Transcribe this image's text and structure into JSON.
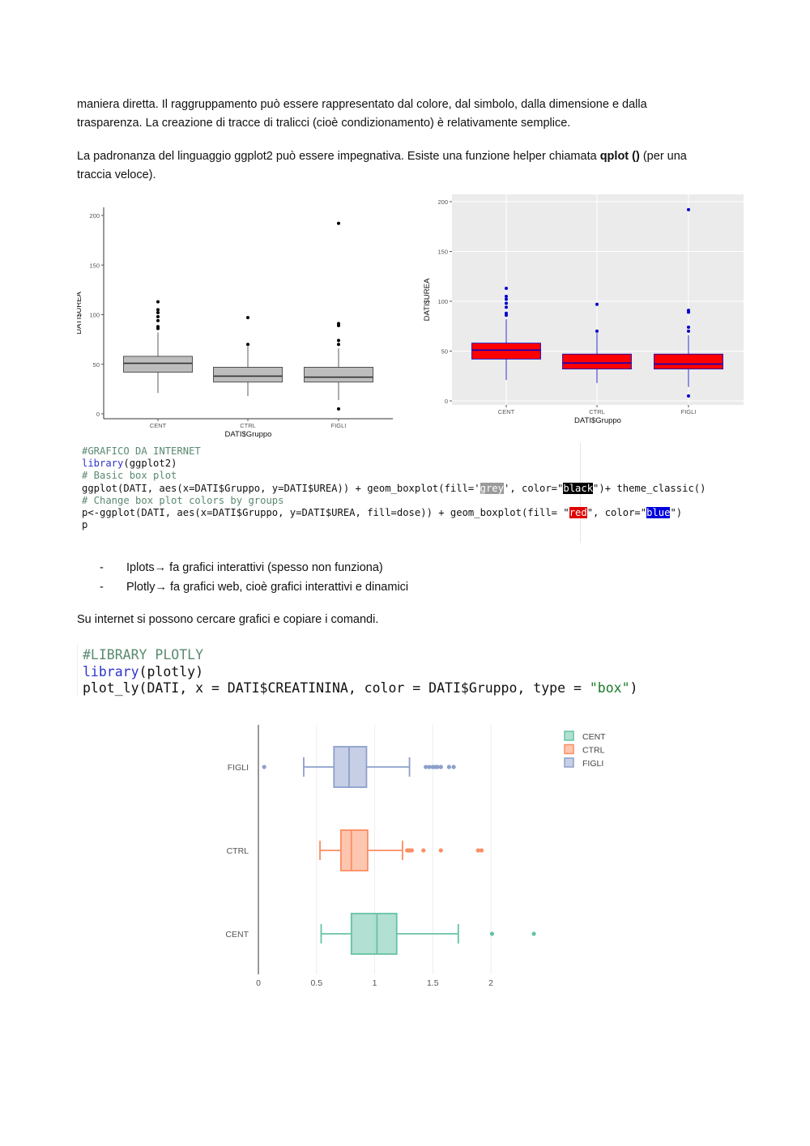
{
  "paragraphs": {
    "p1_line1": "maniera diretta. Il raggruppamento può essere rappresentato dal colore, dal simbolo, dalla dimensione e dalla",
    "p1_line2": "trasparenza. La creazione di tracce di tralicci (cioè condizionamento) è relativamente semplice.",
    "p2_pre": "La padronanza del linguaggio ggplot2 può essere impegnativa. Esiste una funzione helper chiamata ",
    "p2_bold": "qplot ()",
    "p2_post": " (per una",
    "p2_line2": "traccia veloce).",
    "p3": "Su internet si possono cercare grafici e copiare i comandi."
  },
  "bullets": [
    {
      "dash": "-",
      "text": "Iplots→ fa grafici interattivi (spesso non funziona)"
    },
    {
      "dash": "-",
      "text": "Plotly→ fa grafici web, cioè grafici interattivi e dinamici"
    }
  ],
  "code1": {
    "l1": "#GRAFICO DA INTERNET",
    "l2_kw": "library",
    "l2_rest": "(ggplot2)",
    "l3": "# Basic box plot",
    "l4_a": "ggplot(DATI, aes(x=DATI$Gruppo, y=DATI$UREA)) + geom_boxplot(fill='",
    "l4_grey": "grey",
    "l4_b": "', color=\"",
    "l4_black": "black",
    "l4_c": "\")+ theme_classic()",
    "l5": "# Change box plot colors by groups",
    "l6_a": "p<-ggplot(DATI, aes(x=DATI$Gruppo, y=DATI$UREA, fill=dose)) + geom_boxplot(fill= \"",
    "l6_red": "red",
    "l6_b": "\", color=\"",
    "l6_blue": "blue",
    "l6_c": "\")",
    "l7": "p"
  },
  "code2": {
    "l1": "#LIBRARY PLOTLY",
    "l2_kw": "library",
    "l2_rest": "(plotly)",
    "l3_a": "plot_ly(DATI, x = DATI$CREATININA, color = DATI$Gruppo, type = ",
    "l3_str": "\"box\"",
    "l3_b": ")"
  },
  "chart_data": [
    {
      "type": "box",
      "style": "theme_classic, grey fill, black outline",
      "xlabel": "DATI$Gruppo",
      "ylabel": "DATI$UREA",
      "ylim": [
        0,
        200
      ],
      "yticks": [
        0,
        50,
        100,
        150,
        200
      ],
      "categories": [
        "CENT",
        "CTRL",
        "FIGLI"
      ],
      "fill": "#bdbdbd",
      "stroke": "#333333",
      "boxes": [
        {
          "min": 21,
          "q1": 42,
          "median": 51,
          "q3": 58,
          "max": 82,
          "outliers": [
            86,
            88,
            94,
            98,
            102,
            105,
            113
          ]
        },
        {
          "min": 18,
          "q1": 32,
          "median": 38,
          "q3": 47,
          "max": 68,
          "outliers": [
            70,
            97
          ]
        },
        {
          "min": 14,
          "q1": 32,
          "median": 37,
          "q3": 47,
          "max": 66,
          "outliers": [
            5,
            70,
            74,
            89,
            91,
            192
          ]
        }
      ]
    },
    {
      "type": "box",
      "style": "ggplot grey theme, red fill, blue outline",
      "xlabel": "DATI$Gruppo",
      "ylabel": "DATI$UREA",
      "ylim": [
        0,
        200
      ],
      "yticks": [
        0,
        50,
        100,
        150,
        200
      ],
      "categories": [
        "CENT",
        "CTRL",
        "FIGLI"
      ],
      "fill": "#ff0000",
      "stroke": "#0000cc",
      "boxes": [
        {
          "min": 21,
          "q1": 42,
          "median": 51,
          "q3": 58,
          "max": 82,
          "outliers": [
            86,
            88,
            94,
            98,
            102,
            105,
            113
          ]
        },
        {
          "min": 18,
          "q1": 32,
          "median": 38,
          "q3": 47,
          "max": 68,
          "outliers": [
            70,
            97
          ]
        },
        {
          "min": 14,
          "q1": 32,
          "median": 37,
          "q3": 47,
          "max": 66,
          "outliers": [
            5,
            70,
            74,
            89,
            91,
            192
          ]
        }
      ]
    },
    {
      "type": "box",
      "orientation": "horizontal",
      "style": "plotly",
      "xlim": [
        0,
        2.5
      ],
      "xticks": [
        0,
        0.5,
        1,
        1.5,
        2
      ],
      "xtick_labels": [
        "0",
        "0.5",
        "1",
        "1.5",
        "2"
      ],
      "categories": [
        "CENT",
        "CTRL",
        "FIGLI"
      ],
      "legend": [
        "CENT",
        "CTRL",
        "FIGLI"
      ],
      "legend_position": "top-right",
      "colors": [
        "#66c2a5",
        "#fc8d62",
        "#8da0cb"
      ],
      "boxes": [
        {
          "name": "CENT",
          "min": 0.54,
          "q1": 0.8,
          "median": 1.02,
          "q3": 1.19,
          "max": 1.72,
          "outliers": [
            2.01,
            2.37
          ]
        },
        {
          "name": "CTRL",
          "min": 0.53,
          "q1": 0.71,
          "median": 0.8,
          "q3": 0.94,
          "max": 1.24,
          "outliers": [
            1.28,
            1.29,
            1.3,
            1.32,
            1.42,
            1.57,
            1.89,
            1.92
          ]
        },
        {
          "name": "FIGLI",
          "min": 0.39,
          "q1": 0.65,
          "median": 0.78,
          "q3": 0.93,
          "max": 1.3,
          "outliers": [
            0.05,
            1.44,
            1.47,
            1.5,
            1.52,
            1.54,
            1.57,
            1.64,
            1.68
          ]
        }
      ]
    }
  ]
}
